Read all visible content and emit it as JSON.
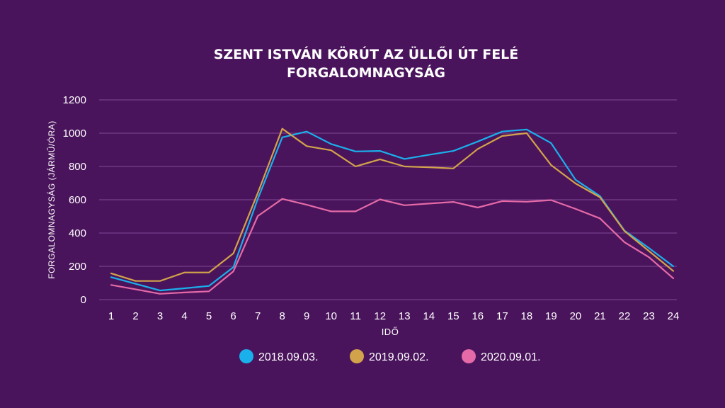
{
  "chart_data": {
    "type": "line",
    "title": [
      "SZENT ISTVÁN KÖRÚT AZ ÜLLŐI ÚT FELÉ",
      "FORGALOMNAGYSÁG"
    ],
    "xlabel": "IDŐ",
    "ylabel": "FORGALOMNAGYSÁG (JÁRMŰ/ÓRA)",
    "ylim": [
      0,
      1200
    ],
    "yticks": [
      0,
      200,
      400,
      600,
      800,
      1000,
      1200
    ],
    "categories": [
      "1",
      "2",
      "3",
      "4",
      "5",
      "6",
      "7",
      "8",
      "9",
      "10",
      "11",
      "12",
      "13",
      "14",
      "15",
      "16",
      "17",
      "18",
      "19",
      "20",
      "21",
      "22",
      "23",
      "24"
    ],
    "grid": true,
    "legend_position": "bottom",
    "series": [
      {
        "name": "2018.09.03.",
        "color": "#1ab0ec",
        "values": [
          135,
          95,
          55,
          68,
          82,
          195,
          605,
          975,
          1010,
          935,
          890,
          893,
          845,
          870,
          893,
          950,
          1010,
          1022,
          940,
          720,
          622,
          415,
          310,
          200
        ]
      },
      {
        "name": "2019.09.02.",
        "color": "#d2a34a",
        "values": [
          158,
          112,
          112,
          163,
          163,
          278,
          640,
          1027,
          922,
          897,
          800,
          843,
          800,
          795,
          788,
          905,
          983,
          1000,
          808,
          698,
          615,
          412,
          292,
          172
        ]
      },
      {
        "name": "2020.09.01.",
        "color": "#e56aa7",
        "values": [
          88,
          62,
          35,
          43,
          50,
          170,
          502,
          605,
          570,
          530,
          530,
          602,
          567,
          577,
          587,
          553,
          592,
          588,
          598,
          545,
          488,
          345,
          255,
          128
        ]
      }
    ]
  }
}
